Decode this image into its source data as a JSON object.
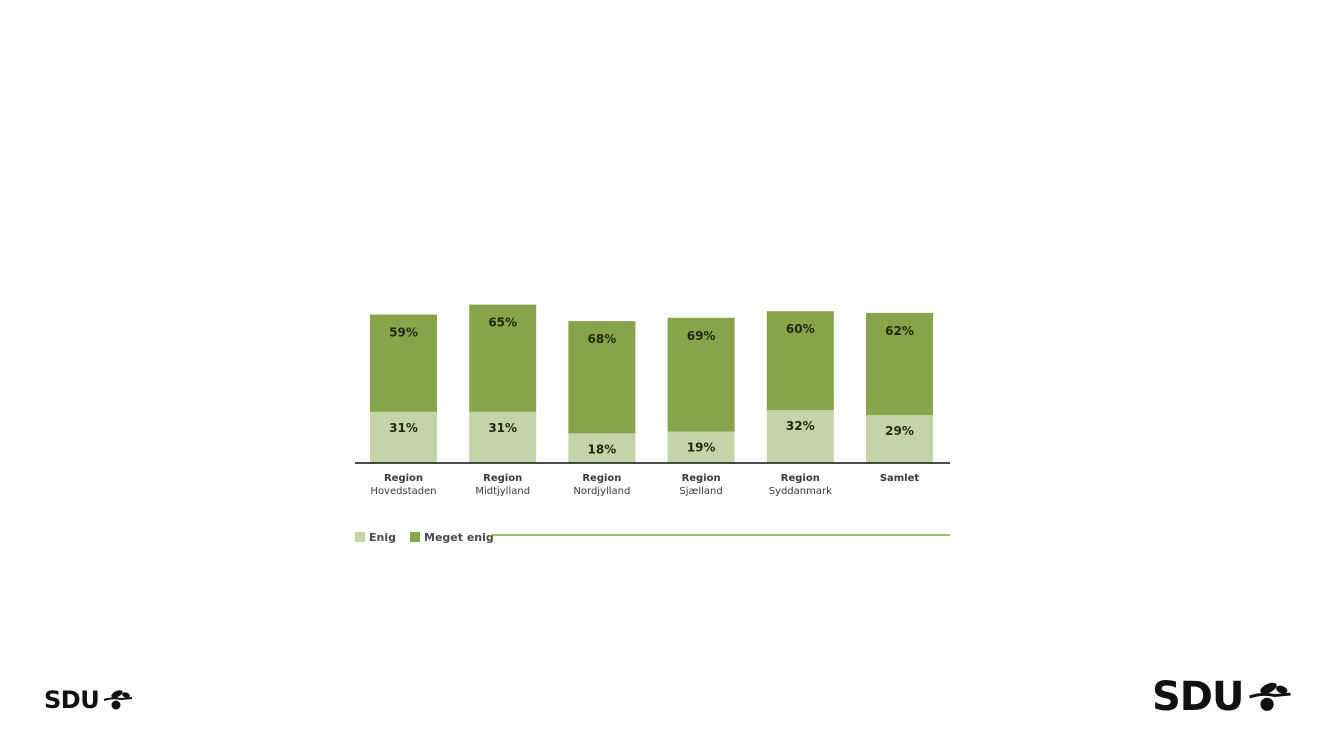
{
  "chart_data": {
    "type": "bar",
    "stacked": true,
    "ylim": [
      0,
      100
    ],
    "categories": [
      [
        "Region",
        "Hovedstaden"
      ],
      [
        "Region",
        "Midtjylland"
      ],
      [
        "Region",
        "Nordjylland"
      ],
      [
        "Region",
        "Sjælland"
      ],
      [
        "Region",
        "Syddanmark"
      ],
      [
        "Samlet"
      ]
    ],
    "series": [
      {
        "name": "Enig",
        "color": "#c5d4a8",
        "values": [
          31,
          31,
          18,
          19,
          32,
          29
        ]
      },
      {
        "name": "Meget enig",
        "color": "#86a44a",
        "values": [
          59,
          65,
          68,
          69,
          60,
          62
        ]
      }
    ],
    "legend": "bottom-left",
    "grid": false
  },
  "logos": {
    "left": {
      "text": "SDU",
      "icon": "olive-branch-icon"
    },
    "right": {
      "text": "SDU",
      "icon": "olive-branch-icon"
    }
  }
}
